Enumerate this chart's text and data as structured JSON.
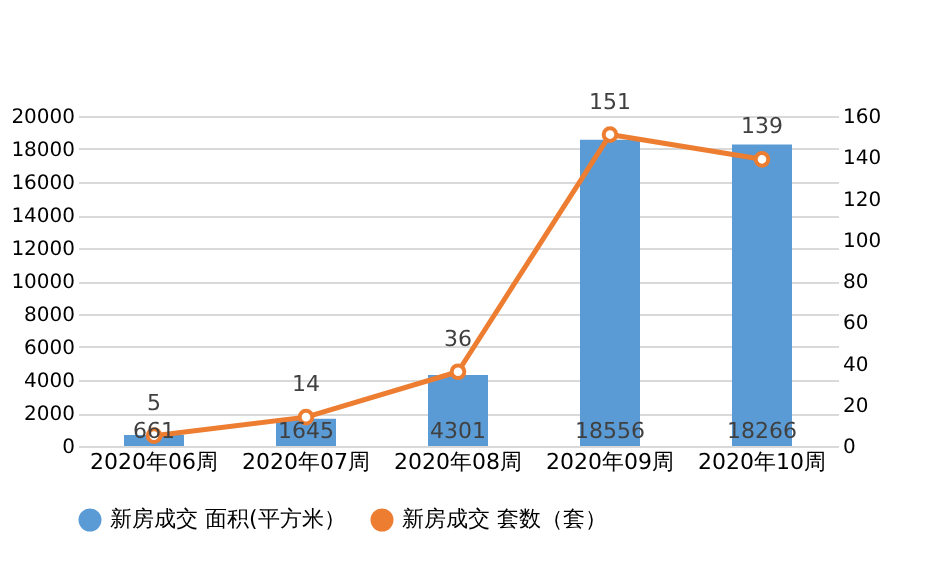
{
  "chart_data": {
    "type": "bar",
    "categories": [
      "2020年06周",
      "2020年07周",
      "2020年08周",
      "2020年09周",
      "2020年10周"
    ],
    "series": [
      {
        "name": "新房成交 面积(平方米）",
        "color": "#5b9bd5",
        "values": [
          661,
          1645,
          4301,
          18556,
          18266
        ]
      },
      {
        "name": "新房成交 套数（套）",
        "type": "line",
        "axis": "y2",
        "color": "#ed7d31",
        "marker": "circle",
        "values": [
          5,
          14,
          36,
          151,
          139
        ]
      }
    ],
    "ylim": [
      0,
      20000
    ],
    "yticks": [
      0,
      2000,
      4000,
      6000,
      8000,
      10000,
      12000,
      14000,
      16000,
      18000,
      20000
    ],
    "y2lim": [
      0,
      160
    ],
    "y2ticks": [
      0,
      20,
      40,
      60,
      80,
      100,
      120,
      140,
      160
    ],
    "data_labels": true,
    "grid": "y",
    "legend": "bottom"
  }
}
